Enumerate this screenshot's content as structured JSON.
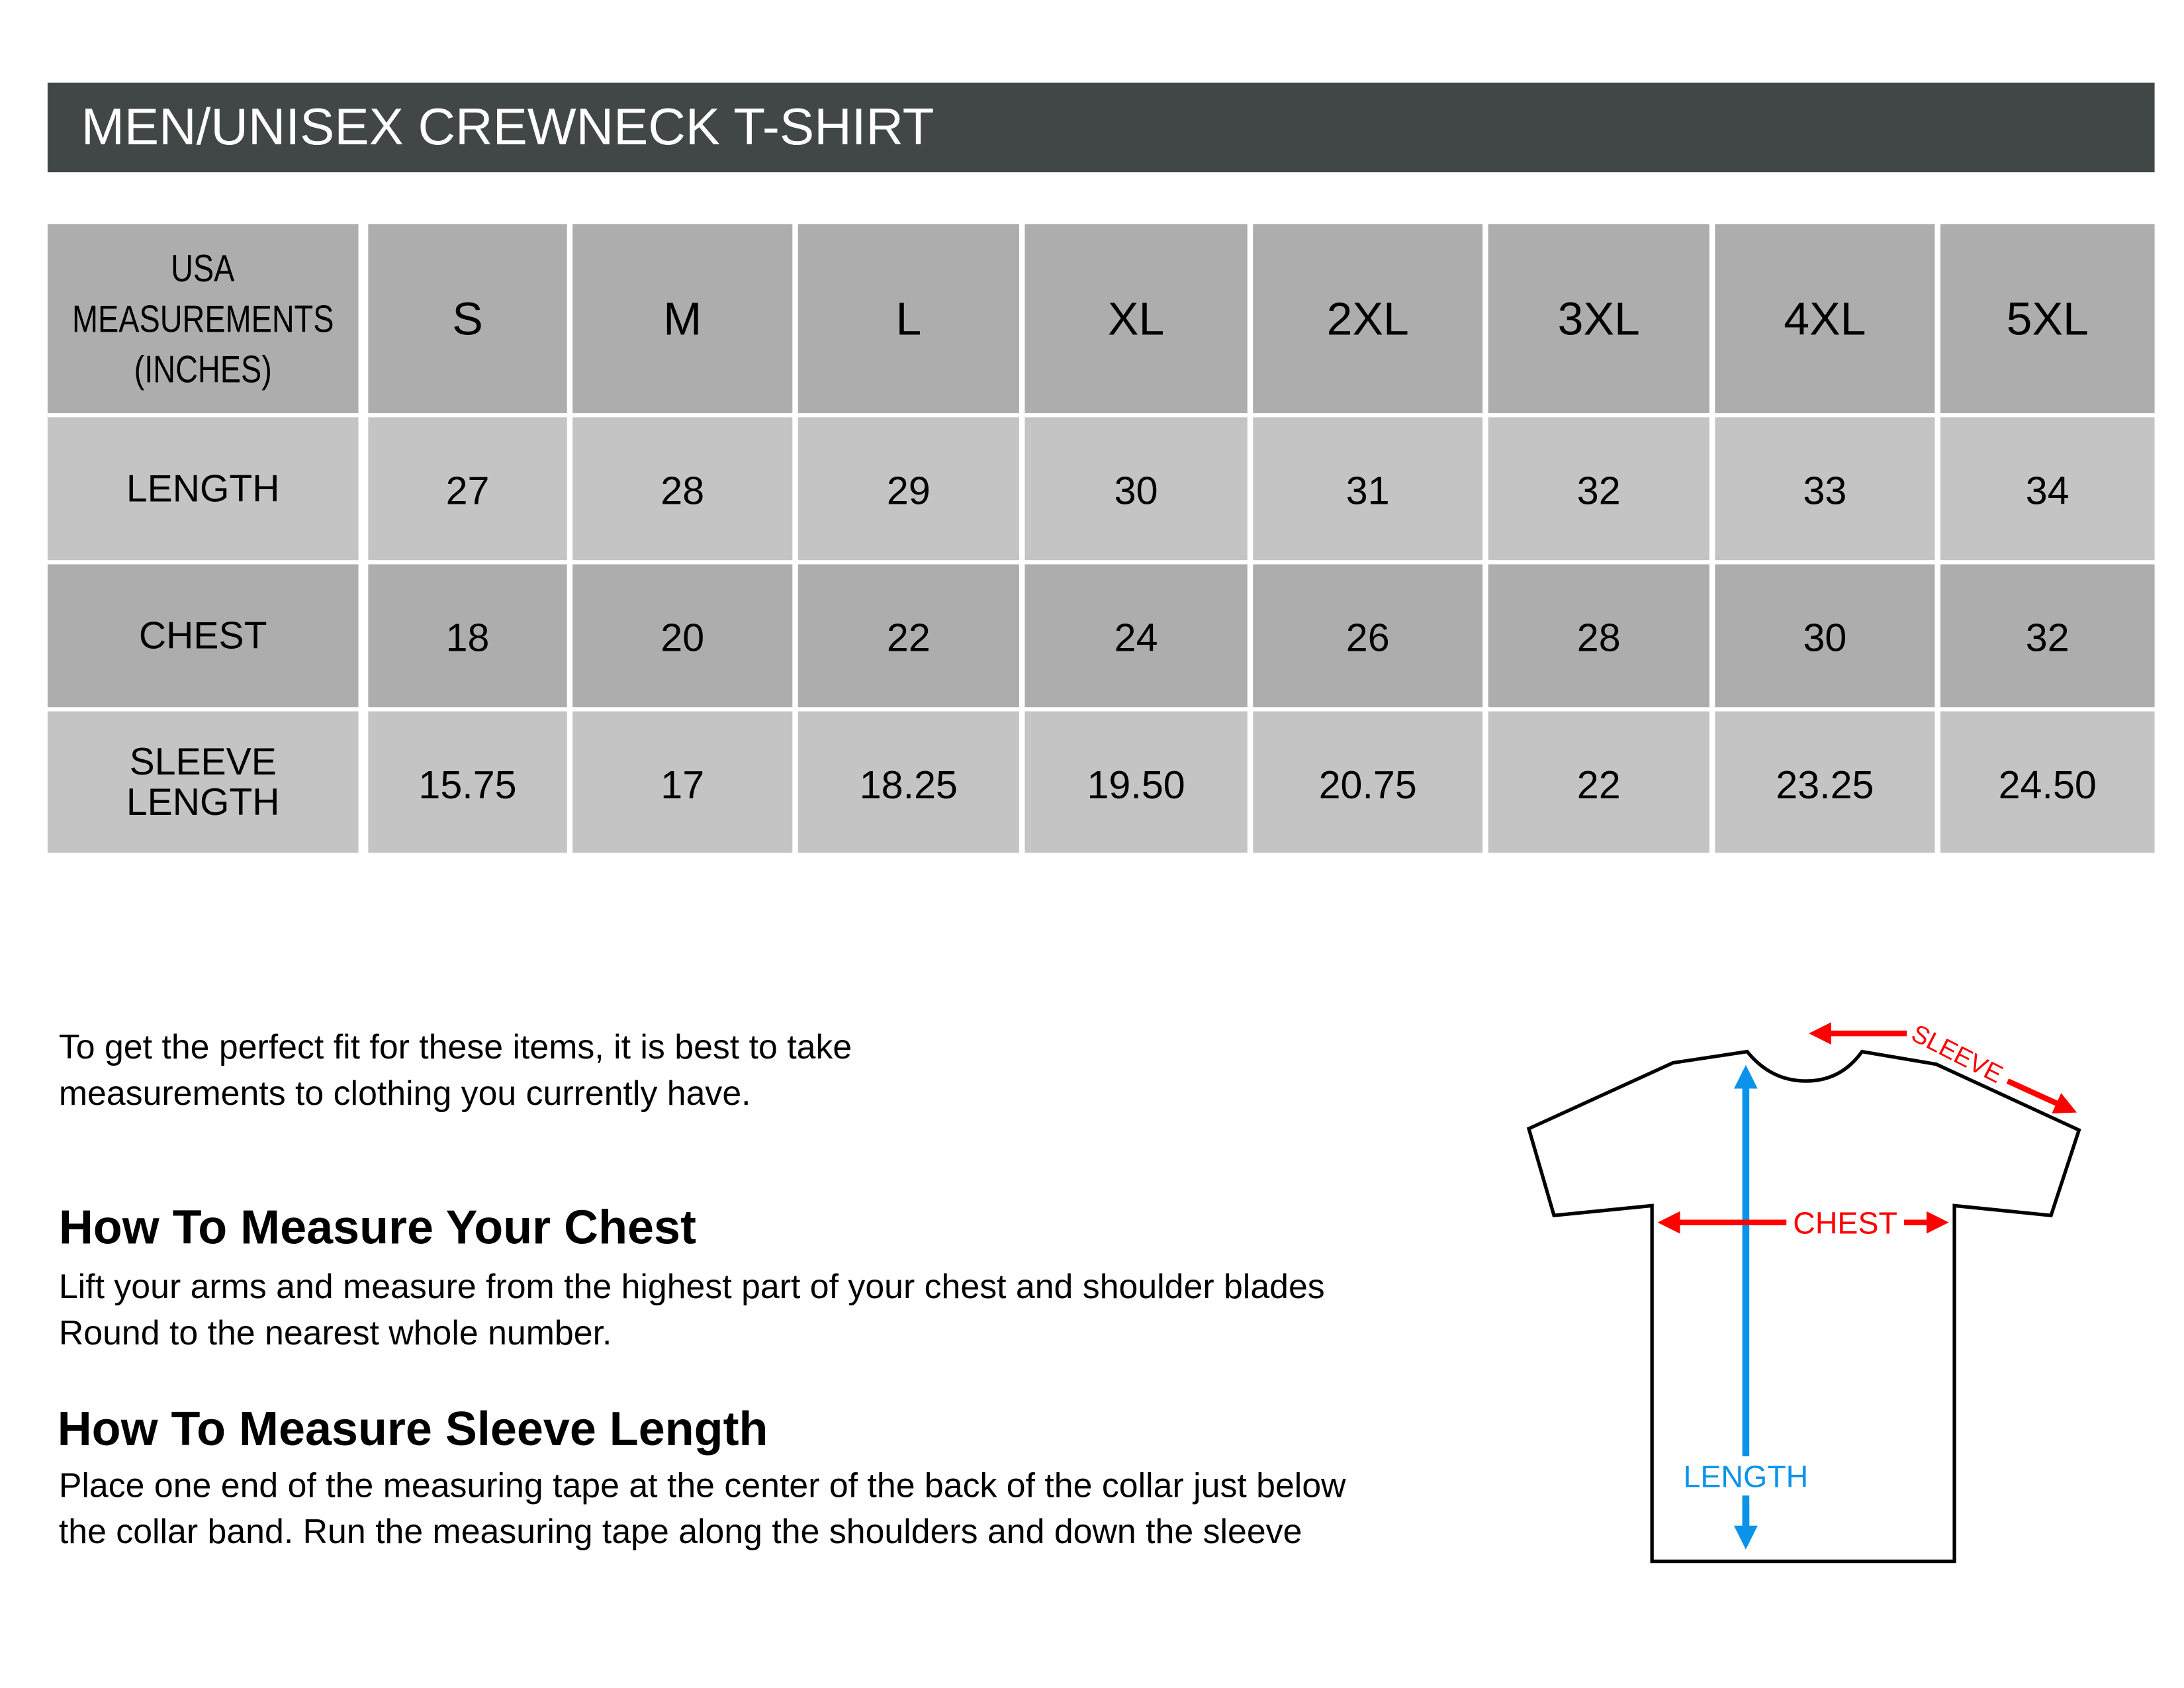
{
  "title": "MEN/UNISEX CREWNECK T-SHIRT",
  "table": {
    "corner_lines": [
      "USA",
      "MEASUREMENTS",
      "(INCHES)"
    ],
    "sizes": [
      "S",
      "M",
      "L",
      "XL",
      "2XL",
      "3XL",
      "4XL",
      "5XL"
    ],
    "rows": [
      {
        "label": "LENGTH",
        "values": [
          "27",
          "28",
          "29",
          "30",
          "31",
          "32",
          "33",
          "34"
        ]
      },
      {
        "label": "CHEST",
        "values": [
          "18",
          "20",
          "22",
          "24",
          "26",
          "28",
          "30",
          "32"
        ]
      },
      {
        "label_lines": [
          "SLEEVE",
          "LENGTH"
        ],
        "values": [
          "15.75",
          "17",
          "18.25",
          "19.50",
          "20.75",
          "22",
          "23.25",
          "24.50"
        ]
      }
    ],
    "colors": {
      "header_bar": "#414646",
      "dark_cell": "#adadad",
      "light_cell": "#c4c4c4"
    }
  },
  "intro": [
    "To get the perfect fit for these items, it is best to take",
    "measurements to clothing you currently have."
  ],
  "chest_section": {
    "heading": "How To Measure Your Chest",
    "lines": [
      "Lift your arms and measure from the highest part of your chest and shoulder blades",
      "Round to the nearest whole number."
    ]
  },
  "sleeve_section": {
    "heading": "How To Measure Sleeve Length",
    "lines": [
      "Place one end of the measuring tape at the center of the back of the collar just below",
      "the collar band. Run the measuring tape along the shoulders and down the sleeve"
    ]
  },
  "diagram": {
    "sleeve_label": "SLEEVE",
    "chest_label": "CHEST",
    "length_label": "LENGTH",
    "colors": {
      "red": "#ff0000",
      "blue": "#0a93ea"
    }
  }
}
